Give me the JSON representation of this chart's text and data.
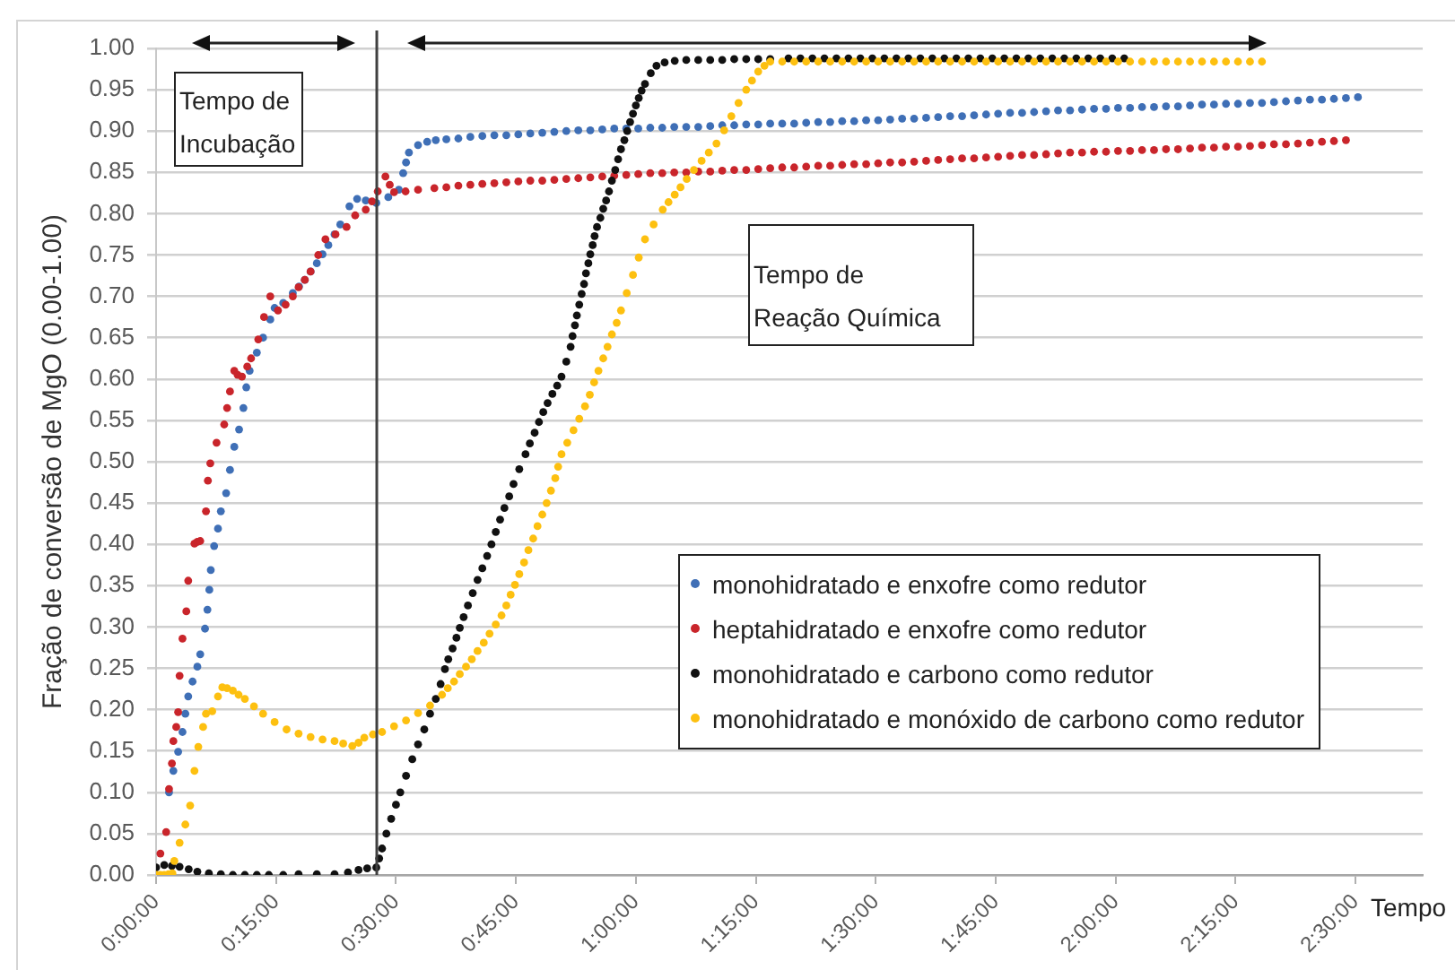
{
  "chart_data": {
    "type": "scatter",
    "xlabel": "Tempo",
    "ylabel": "Fração de conversão de MgO (0.00-1.00)",
    "annotations": [
      "Tempo de\nIncubação",
      "Tempo de\nReação Química"
    ],
    "xlim": [
      0,
      2.64
    ],
    "xticks": [
      {
        "value": 0,
        "label": "0:00:00"
      },
      {
        "value": 0.25,
        "label": "0:15:00"
      },
      {
        "value": 0.5,
        "label": "0:30:00"
      },
      {
        "value": 0.75,
        "label": "0:45:00"
      },
      {
        "value": 1,
        "label": "1:00:00"
      },
      {
        "value": 1.25,
        "label": "1:15:00"
      },
      {
        "value": 1.5,
        "label": "1:30:00"
      },
      {
        "value": 1.75,
        "label": "1:45:00"
      },
      {
        "value": 2,
        "label": "2:00:00"
      },
      {
        "value": 2.25,
        "label": "2:15:00"
      },
      {
        "value": 2.5,
        "label": "2:30:00"
      }
    ],
    "ylim": [
      0,
      1
    ],
    "yticks": [
      {
        "value": 0,
        "label": "0.00"
      },
      0.05,
      {
        "value": 0.1,
        "label": "0.10"
      },
      0.15,
      {
        "value": 0.2,
        "label": "0.20"
      },
      0.25,
      {
        "value": 0.3,
        "label": "0.30"
      },
      0.35,
      {
        "value": 0.4,
        "label": "0.40"
      },
      0.45,
      {
        "value": 0.5,
        "label": "0.50"
      },
      0.55,
      {
        "value": 0.6,
        "label": "0.60"
      },
      0.65,
      {
        "value": 0.7,
        "label": "0.70"
      },
      0.75,
      {
        "value": 0.8,
        "label": "0.80"
      },
      0.85,
      {
        "value": 0.9,
        "label": "0.90"
      },
      0.95,
      {
        "value": 1,
        "label": "1.00"
      }
    ],
    "grid": "y",
    "legend": "bottom right",
    "marker": "circle",
    "ref_lines": [
      {
        "axis": "x",
        "value": 0.46,
        "color": "#404040"
      }
    ],
    "series": [
      {
        "name": "monohidratado e enxofre como redutor",
        "color": "#3f6fb6",
        "x": [
          0.027,
          0.036,
          0.046,
          0.055,
          0.061,
          0.067,
          0.076,
          0.086,
          0.092,
          0.102,
          0.107,
          0.111,
          0.114,
          0.121,
          0.129,
          0.135,
          0.146,
          0.154,
          0.163,
          0.173,
          0.182,
          0.188,
          0.195,
          0.21,
          0.223,
          0.238,
          0.247,
          0.265,
          0.285,
          0.298,
          0.31,
          0.322,
          0.335,
          0.347,
          0.359,
          0.372,
          0.384,
          0.403,
          0.419,
          0.437,
          0.459,
          0.484,
          0.506,
          0.515,
          0.521,
          0.527,
          0.546,
          0.565,
          0.583,
          0.605,
          0.63,
          0.655,
          0.68,
          0.705,
          0.73,
          0.755,
          0.78,
          0.805,
          0.83,
          0.855,
          0.88,
          0.905,
          0.93,
          0.955,
          0.98,
          1.005,
          1.03,
          1.055,
          1.08,
          1.105,
          1.13,
          1.155,
          1.18,
          1.205,
          1.23,
          1.255,
          1.28,
          1.305,
          1.33,
          1.355,
          1.38,
          1.405,
          1.43,
          1.455,
          1.48,
          1.505,
          1.53,
          1.555,
          1.58,
          1.605,
          1.63,
          1.655,
          1.68,
          1.705,
          1.73,
          1.755,
          1.78,
          1.805,
          1.83,
          1.855,
          1.88,
          1.905,
          1.93,
          1.955,
          1.98,
          2.005,
          2.03,
          2.055,
          2.08,
          2.105,
          2.13,
          2.155,
          2.18,
          2.205,
          2.23,
          2.255,
          2.28,
          2.305,
          2.33,
          2.355,
          2.38,
          2.405,
          2.43,
          2.455,
          2.48,
          2.505
        ],
        "values": [
          0.1,
          0.126,
          0.149,
          0.173,
          0.195,
          0.216,
          0.234,
          0.252,
          0.267,
          0.298,
          0.321,
          0.345,
          0.369,
          0.398,
          0.419,
          0.44,
          0.462,
          0.49,
          0.518,
          0.539,
          0.565,
          0.59,
          0.61,
          0.632,
          0.65,
          0.672,
          0.686,
          0.692,
          0.704,
          0.712,
          0.72,
          0.73,
          0.74,
          0.751,
          0.762,
          0.775,
          0.787,
          0.809,
          0.818,
          0.816,
          0.813,
          0.82,
          0.829,
          0.849,
          0.862,
          0.874,
          0.883,
          0.887,
          0.889,
          0.89,
          0.891,
          0.893,
          0.894,
          0.895,
          0.895,
          0.896,
          0.897,
          0.898,
          0.899,
          0.9,
          0.901,
          0.901,
          0.902,
          0.903,
          0.903,
          0.903,
          0.904,
          0.904,
          0.905,
          0.905,
          0.905,
          0.906,
          0.907,
          0.907,
          0.908,
          0.908,
          0.909,
          0.909,
          0.909,
          0.91,
          0.911,
          0.911,
          0.912,
          0.912,
          0.913,
          0.913,
          0.914,
          0.915,
          0.915,
          0.916,
          0.917,
          0.918,
          0.918,
          0.919,
          0.92,
          0.921,
          0.922,
          0.922,
          0.923,
          0.924,
          0.925,
          0.925,
          0.926,
          0.927,
          0.927,
          0.928,
          0.928,
          0.929,
          0.929,
          0.93,
          0.93,
          0.931,
          0.932,
          0.932,
          0.933,
          0.933,
          0.934,
          0.934,
          0.935,
          0.936,
          0.937,
          0.938,
          0.938,
          0.939,
          0.94,
          0.941
        ]
      },
      {
        "name": "heptahidratado e enxofre como redutor",
        "color": "#c9252b",
        "x": [
          0.009,
          0.021,
          0.027,
          0.033,
          0.036,
          0.042,
          0.046,
          0.049,
          0.055,
          0.063,
          0.067,
          0.08,
          0.086,
          0.092,
          0.104,
          0.108,
          0.113,
          0.126,
          0.142,
          0.148,
          0.154,
          0.163,
          0.17,
          0.179,
          0.19,
          0.198,
          0.213,
          0.225,
          0.238,
          0.254,
          0.27,
          0.285,
          0.297,
          0.31,
          0.322,
          0.338,
          0.353,
          0.374,
          0.397,
          0.415,
          0.437,
          0.45,
          0.462,
          0.478,
          0.487,
          0.496,
          0.52,
          0.546,
          0.58,
          0.605,
          0.63,
          0.655,
          0.68,
          0.705,
          0.73,
          0.755,
          0.78,
          0.805,
          0.83,
          0.855,
          0.88,
          0.905,
          0.93,
          0.955,
          0.98,
          1.005,
          1.03,
          1.055,
          1.08,
          1.105,
          1.13,
          1.155,
          1.18,
          1.205,
          1.23,
          1.255,
          1.28,
          1.305,
          1.33,
          1.355,
          1.38,
          1.405,
          1.43,
          1.455,
          1.48,
          1.505,
          1.53,
          1.555,
          1.58,
          1.605,
          1.63,
          1.655,
          1.68,
          1.705,
          1.73,
          1.755,
          1.78,
          1.805,
          1.83,
          1.855,
          1.88,
          1.905,
          1.93,
          1.955,
          1.98,
          2.005,
          2.03,
          2.055,
          2.08,
          2.105,
          2.13,
          2.155,
          2.18,
          2.205,
          2.23,
          2.255,
          2.28,
          2.305,
          2.33,
          2.355,
          2.38,
          2.405,
          2.43,
          2.455,
          2.48
        ],
        "values": [
          0.026,
          0.052,
          0.104,
          0.135,
          0.162,
          0.179,
          0.197,
          0.241,
          0.286,
          0.319,
          0.356,
          0.401,
          0.403,
          0.404,
          0.44,
          0.477,
          0.498,
          0.523,
          0.545,
          0.565,
          0.585,
          0.61,
          0.605,
          0.603,
          0.615,
          0.625,
          0.648,
          0.675,
          0.7,
          0.683,
          0.69,
          0.7,
          0.711,
          0.72,
          0.73,
          0.75,
          0.769,
          0.775,
          0.784,
          0.798,
          0.805,
          0.815,
          0.827,
          0.845,
          0.835,
          0.826,
          0.827,
          0.829,
          0.831,
          0.832,
          0.834,
          0.835,
          0.836,
          0.837,
          0.838,
          0.839,
          0.84,
          0.84,
          0.841,
          0.842,
          0.843,
          0.844,
          0.845,
          0.846,
          0.847,
          0.848,
          0.849,
          0.849,
          0.85,
          0.85,
          0.851,
          0.851,
          0.852,
          0.853,
          0.853,
          0.854,
          0.855,
          0.856,
          0.856,
          0.857,
          0.858,
          0.858,
          0.859,
          0.86,
          0.86,
          0.861,
          0.862,
          0.862,
          0.863,
          0.864,
          0.865,
          0.866,
          0.867,
          0.867,
          0.868,
          0.869,
          0.87,
          0.871,
          0.871,
          0.872,
          0.873,
          0.874,
          0.874,
          0.875,
          0.875,
          0.876,
          0.876,
          0.877,
          0.877,
          0.878,
          0.878,
          0.879,
          0.88,
          0.88,
          0.881,
          0.881,
          0.882,
          0.883,
          0.884,
          0.884,
          0.885,
          0.886,
          0.887,
          0.888,
          0.889
        ]
      },
      {
        "name": "monohidratado e carbono como redutor",
        "color": "#111111",
        "x": [
          0,
          0.017,
          0.033,
          0.049,
          0.068,
          0.086,
          0.11,
          0.135,
          0.16,
          0.185,
          0.21,
          0.235,
          0.265,
          0.297,
          0.335,
          0.372,
          0.4,
          0.422,
          0.44,
          0.459,
          0.465,
          0.471,
          0.48,
          0.49,
          0.5,
          0.509,
          0.521,
          0.534,
          0.546,
          0.559,
          0.571,
          0.583,
          0.593,
          0.602,
          0.609,
          0.618,
          0.626,
          0.633,
          0.641,
          0.65,
          0.66,
          0.67,
          0.68,
          0.69,
          0.699,
          0.708,
          0.717,
          0.726,
          0.736,
          0.745,
          0.757,
          0.77,
          0.779,
          0.789,
          0.798,
          0.807,
          0.816,
          0.826,
          0.836,
          0.845,
          0.855,
          0.864,
          0.868,
          0.873,
          0.877,
          0.882,
          0.887,
          0.892,
          0.896,
          0.901,
          0.905,
          0.91,
          0.914,
          0.919,
          0.926,
          0.932,
          0.938,
          0.944,
          0.95,
          0.957,
          0.963,
          0.969,
          0.976,
          0.982,
          0.988,
          0.994,
          1.0,
          1.006,
          1.012,
          1.019,
          1.031,
          1.043,
          1.06,
          1.081,
          1.105,
          1.13,
          1.155,
          1.18,
          1.205,
          1.23,
          1.255,
          1.28,
          1.318,
          1.343,
          1.368,
          1.393,
          1.418,
          1.443,
          1.468,
          1.493,
          1.518,
          1.543,
          1.568,
          1.593,
          1.618,
          1.643,
          1.668,
          1.693,
          1.718,
          1.743,
          1.768,
          1.793,
          1.818,
          1.843,
          1.868,
          1.893,
          1.918,
          1.943,
          1.968,
          1.993,
          2.018
        ],
        "values": [
          0.009,
          0.012,
          0.011,
          0.01,
          0.007,
          0.004,
          0.002,
          0.001,
          0,
          0,
          0,
          0,
          0,
          0.001,
          0.001,
          0.001,
          0.003,
          0.006,
          0.008,
          0.009,
          0.02,
          0.032,
          0.05,
          0.068,
          0.085,
          0.1,
          0.12,
          0.14,
          0.158,
          0.176,
          0.195,
          0.213,
          0.231,
          0.249,
          0.261,
          0.274,
          0.287,
          0.299,
          0.312,
          0.326,
          0.341,
          0.357,
          0.371,
          0.386,
          0.4,
          0.415,
          0.43,
          0.444,
          0.458,
          0.473,
          0.491,
          0.509,
          0.522,
          0.535,
          0.548,
          0.56,
          0.571,
          0.582,
          0.592,
          0.603,
          0.621,
          0.639,
          0.652,
          0.665,
          0.677,
          0.69,
          0.703,
          0.715,
          0.728,
          0.74,
          0.751,
          0.762,
          0.773,
          0.784,
          0.795,
          0.806,
          0.816,
          0.827,
          0.84,
          0.853,
          0.866,
          0.878,
          0.889,
          0.9,
          0.911,
          0.921,
          0.931,
          0.94,
          0.949,
          0.957,
          0.97,
          0.979,
          0.983,
          0.985,
          0.986,
          0.986,
          0.986,
          0.986,
          0.987,
          0.987,
          0.987,
          0.987,
          0.988,
          0.988,
          0.988,
          0.988,
          0.988,
          0.988,
          0.988,
          0.988,
          0.988,
          0.988,
          0.988,
          0.988,
          0.988,
          0.988,
          0.988,
          0.988,
          0.988,
          0.988,
          0.988,
          0.988,
          0.988,
          0.988,
          0.988,
          0.988,
          0.988,
          0.988,
          0.988,
          0.988,
          0.988
        ]
      },
      {
        "name": "monohidratado e monóxido de carbono como redutor",
        "color": "#fdc010",
        "x": [
          0,
          0.009,
          0.017,
          0.026,
          0.034,
          0.038,
          0.049,
          0.061,
          0.071,
          0.08,
          0.088,
          0.098,
          0.104,
          0.117,
          0.129,
          0.138,
          0.148,
          0.16,
          0.172,
          0.185,
          0.204,
          0.223,
          0.247,
          0.272,
          0.297,
          0.322,
          0.347,
          0.372,
          0.39,
          0.409,
          0.422,
          0.434,
          0.452,
          0.471,
          0.496,
          0.521,
          0.546,
          0.571,
          0.596,
          0.608,
          0.621,
          0.633,
          0.646,
          0.658,
          0.67,
          0.683,
          0.695,
          0.708,
          0.72,
          0.73,
          0.739,
          0.748,
          0.757,
          0.767,
          0.776,
          0.786,
          0.795,
          0.805,
          0.814,
          0.823,
          0.832,
          0.838,
          0.845,
          0.857,
          0.87,
          0.882,
          0.894,
          0.904,
          0.913,
          0.922,
          0.932,
          0.941,
          0.95,
          0.96,
          0.969,
          0.981,
          0.994,
          1.006,
          1.019,
          1.037,
          1.056,
          1.068,
          1.081,
          1.093,
          1.106,
          1.121,
          1.137,
          1.152,
          1.168,
          1.184,
          1.199,
          1.214,
          1.23,
          1.242,
          1.255,
          1.268,
          1.28,
          1.305,
          1.33,
          1.355,
          1.38,
          1.405,
          1.43,
          1.455,
          1.48,
          1.505,
          1.53,
          1.555,
          1.58,
          1.605,
          1.63,
          1.655,
          1.68,
          1.705,
          1.73,
          1.755,
          1.78,
          1.805,
          1.83,
          1.855,
          1.88,
          1.905,
          1.93,
          1.955,
          1.98,
          2.005,
          2.03,
          2.055,
          2.08,
          2.105,
          2.13,
          2.155,
          2.18,
          2.205,
          2.23,
          2.255,
          2.28,
          2.305
        ],
        "values": [
          0,
          0,
          0,
          0.001,
          0.002,
          0.017,
          0.039,
          0.061,
          0.084,
          0.126,
          0.155,
          0.179,
          0.195,
          0.198,
          0.216,
          0.227,
          0.226,
          0.223,
          0.218,
          0.213,
          0.204,
          0.195,
          0.185,
          0.176,
          0.171,
          0.167,
          0.164,
          0.162,
          0.159,
          0.156,
          0.16,
          0.166,
          0.17,
          0.173,
          0.18,
          0.187,
          0.196,
          0.205,
          0.218,
          0.226,
          0.234,
          0.243,
          0.252,
          0.261,
          0.271,
          0.281,
          0.292,
          0.303,
          0.314,
          0.326,
          0.339,
          0.351,
          0.364,
          0.378,
          0.393,
          0.407,
          0.422,
          0.436,
          0.45,
          0.465,
          0.48,
          0.494,
          0.509,
          0.523,
          0.538,
          0.552,
          0.567,
          0.581,
          0.596,
          0.61,
          0.625,
          0.639,
          0.654,
          0.668,
          0.683,
          0.704,
          0.726,
          0.747,
          0.769,
          0.787,
          0.805,
          0.814,
          0.823,
          0.832,
          0.842,
          0.853,
          0.864,
          0.874,
          0.885,
          0.901,
          0.918,
          0.934,
          0.95,
          0.961,
          0.972,
          0.979,
          0.984,
          0.984,
          0.984,
          0.984,
          0.984,
          0.984,
          0.984,
          0.984,
          0.984,
          0.984,
          0.984,
          0.984,
          0.984,
          0.984,
          0.984,
          0.984,
          0.984,
          0.984,
          0.984,
          0.984,
          0.984,
          0.984,
          0.984,
          0.984,
          0.984,
          0.984,
          0.984,
          0.984,
          0.984,
          0.984,
          0.984,
          0.984,
          0.984,
          0.984,
          0.984,
          0.984,
          0.984,
          0.984,
          0.984,
          0.984,
          0.984,
          0.984
        ]
      }
    ]
  }
}
